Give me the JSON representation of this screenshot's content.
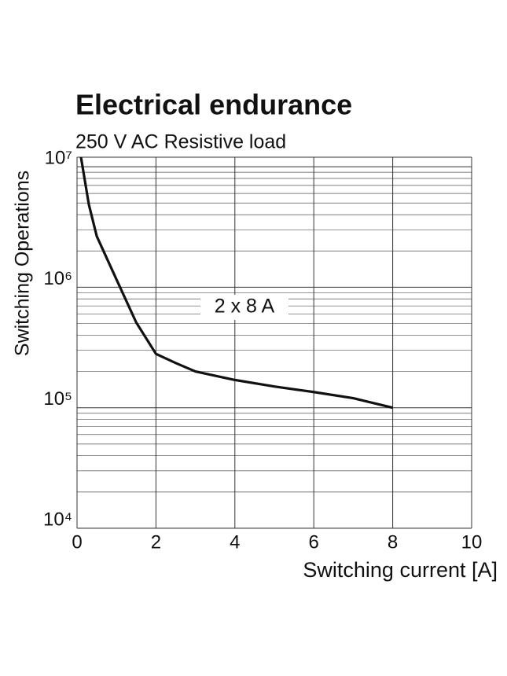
{
  "chart_data": {
    "type": "line",
    "title": "Electrical endurance",
    "subtitle": "250 V AC Resistive load",
    "x_label": "Switching current [A]",
    "y_label": "Switching Operations",
    "log_y": true,
    "grid": true,
    "xlim": [
      0,
      10
    ],
    "xticks": [
      0,
      2,
      4,
      6,
      8,
      10
    ],
    "ylim": [
      10000,
      12000000
    ],
    "yticks": [
      {
        "value": 10000,
        "label": "10⁴"
      },
      {
        "value": 100000,
        "label": "10⁵"
      },
      {
        "value": 1000000,
        "label": "10⁶"
      },
      {
        "value": 10000000,
        "label": "10⁷"
      }
    ],
    "x": [
      0.1,
      0.3,
      0.5,
      1,
      1.5,
      2,
      2.5,
      3,
      4,
      5,
      6,
      7,
      8
    ],
    "series": [
      {
        "name": "2 x 8 A",
        "color": "#111111",
        "values": [
          12000000,
          4850000,
          2650000,
          1160000,
          510000,
          280000,
          235000,
          200000,
          170000,
          150000,
          135000,
          120000,
          100000
        ]
      }
    ]
  }
}
